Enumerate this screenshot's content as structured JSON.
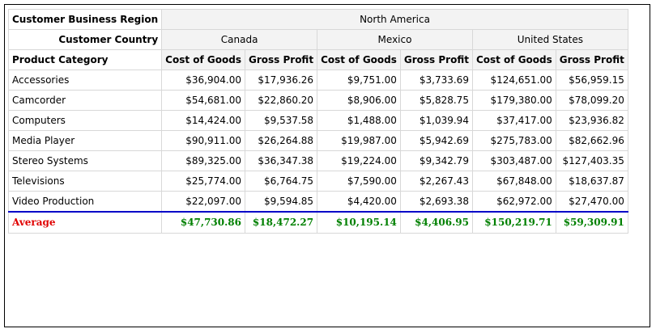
{
  "report": {
    "row_header_region": "Customer Business Region",
    "row_header_country": "Customer Country",
    "row_header_category": "Product Category",
    "region": "North America",
    "countries": [
      "Canada",
      "Mexico",
      "United States"
    ],
    "measures": [
      "Cost of Goods",
      "Gross Profit"
    ],
    "rows": [
      {
        "category": "Accessories",
        "values": [
          "$36,904.00",
          "$17,936.26",
          "$9,751.00",
          "$3,733.69",
          "$124,651.00",
          "$56,959.15"
        ]
      },
      {
        "category": "Camcorder",
        "values": [
          "$54,681.00",
          "$22,860.20",
          "$8,906.00",
          "$5,828.75",
          "$179,380.00",
          "$78,099.20"
        ]
      },
      {
        "category": "Computers",
        "values": [
          "$14,424.00",
          "$9,537.58",
          "$1,488.00",
          "$1,039.94",
          "$37,417.00",
          "$23,936.82"
        ]
      },
      {
        "category": "Media Player",
        "values": [
          "$90,911.00",
          "$26,264.88",
          "$19,987.00",
          "$5,942.69",
          "$275,783.00",
          "$82,662.96"
        ]
      },
      {
        "category": "Stereo Systems",
        "values": [
          "$89,325.00",
          "$36,347.38",
          "$19,224.00",
          "$9,342.79",
          "$303,487.00",
          "$127,403.35"
        ]
      },
      {
        "category": "Televisions",
        "values": [
          "$25,774.00",
          "$6,764.75",
          "$7,590.00",
          "$2,267.43",
          "$67,848.00",
          "$18,637.87"
        ]
      },
      {
        "category": "Video Production",
        "values": [
          "$22,097.00",
          "$9,594.85",
          "$4,420.00",
          "$2,693.38",
          "$62,972.00",
          "$27,470.00"
        ]
      }
    ],
    "average": {
      "label": "Average",
      "values": [
        "$47,730.86",
        "$18,472.27",
        "$10,195.14",
        "$4,406.95",
        "$150,219.71",
        "$59,309.91"
      ]
    },
    "colors": {
      "average_label": "#e00000",
      "average_values": "#008000",
      "separator": "#0000c8"
    }
  }
}
